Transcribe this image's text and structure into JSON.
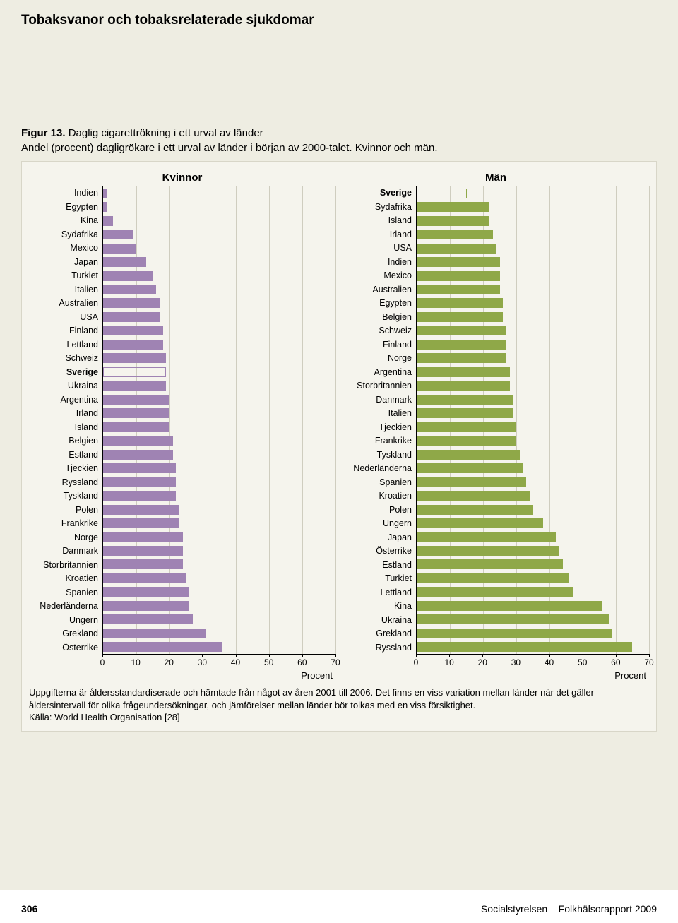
{
  "header": {
    "title": "Tobaksvanor och tobaksrelaterade sjukdomar"
  },
  "figure": {
    "label": "Figur 13.",
    "title": "Daglig cigarettrökning i ett urval av länder",
    "subtitle": "Andel (procent) dagligrökare i ett urval av länder i början av 2000-talet. Kvinnor och män."
  },
  "axis": {
    "xlabel": "Procent",
    "xmax": 70,
    "ticks": [
      0,
      10,
      20,
      30,
      40,
      50,
      60,
      70
    ]
  },
  "colors": {
    "women_bar": "#9f83b3",
    "men_bar": "#8fa848",
    "grid": "#cfcdbf",
    "panel_bg": "#f5f4ed",
    "page_bg": "#eeede2",
    "border": "#d8d6c8"
  },
  "women": {
    "heading": "Kvinnor",
    "highlight": "Sverige",
    "rows": [
      {
        "label": "Indien",
        "value": 1
      },
      {
        "label": "Egypten",
        "value": 1
      },
      {
        "label": "Kina",
        "value": 3
      },
      {
        "label": "Sydafrika",
        "value": 9
      },
      {
        "label": "Mexico",
        "value": 10
      },
      {
        "label": "Japan",
        "value": 13
      },
      {
        "label": "Turkiet",
        "value": 15
      },
      {
        "label": "Italien",
        "value": 16
      },
      {
        "label": "Australien",
        "value": 17
      },
      {
        "label": "USA",
        "value": 17
      },
      {
        "label": "Finland",
        "value": 18
      },
      {
        "label": "Lettland",
        "value": 18
      },
      {
        "label": "Schweiz",
        "value": 19
      },
      {
        "label": "Sverige",
        "value": 19
      },
      {
        "label": "Ukraina",
        "value": 19
      },
      {
        "label": "Argentina",
        "value": 20
      },
      {
        "label": "Irland",
        "value": 20
      },
      {
        "label": "Island",
        "value": 20
      },
      {
        "label": "Belgien",
        "value": 21
      },
      {
        "label": "Estland",
        "value": 21
      },
      {
        "label": "Tjeckien",
        "value": 22
      },
      {
        "label": "Ryssland",
        "value": 22
      },
      {
        "label": "Tyskland",
        "value": 22
      },
      {
        "label": "Polen",
        "value": 23
      },
      {
        "label": "Frankrike",
        "value": 23
      },
      {
        "label": "Norge",
        "value": 24
      },
      {
        "label": "Danmark",
        "value": 24
      },
      {
        "label": "Storbritannien",
        "value": 24
      },
      {
        "label": "Kroatien",
        "value": 25
      },
      {
        "label": "Spanien",
        "value": 26
      },
      {
        "label": "Nederländerna",
        "value": 26
      },
      {
        "label": "Ungern",
        "value": 27
      },
      {
        "label": "Grekland",
        "value": 31
      },
      {
        "label": "Österrike",
        "value": 36
      }
    ]
  },
  "men": {
    "heading": "Män",
    "highlight": "Sverige",
    "rows": [
      {
        "label": "Sverige",
        "value": 15
      },
      {
        "label": "Sydafrika",
        "value": 22
      },
      {
        "label": "Island",
        "value": 22
      },
      {
        "label": "Irland",
        "value": 23
      },
      {
        "label": "USA",
        "value": 24
      },
      {
        "label": "Indien",
        "value": 25
      },
      {
        "label": "Mexico",
        "value": 25
      },
      {
        "label": "Australien",
        "value": 25
      },
      {
        "label": "Egypten",
        "value": 26
      },
      {
        "label": "Belgien",
        "value": 26
      },
      {
        "label": "Schweiz",
        "value": 27
      },
      {
        "label": "Finland",
        "value": 27
      },
      {
        "label": "Norge",
        "value": 27
      },
      {
        "label": "Argentina",
        "value": 28
      },
      {
        "label": "Storbritannien",
        "value": 28
      },
      {
        "label": "Danmark",
        "value": 29
      },
      {
        "label": "Italien",
        "value": 29
      },
      {
        "label": "Tjeckien",
        "value": 30
      },
      {
        "label": "Frankrike",
        "value": 30
      },
      {
        "label": "Tyskland",
        "value": 31
      },
      {
        "label": "Nederländerna",
        "value": 32
      },
      {
        "label": "Spanien",
        "value": 33
      },
      {
        "label": "Kroatien",
        "value": 34
      },
      {
        "label": "Polen",
        "value": 35
      },
      {
        "label": "Ungern",
        "value": 38
      },
      {
        "label": "Japan",
        "value": 42
      },
      {
        "label": "Österrike",
        "value": 43
      },
      {
        "label": "Estland",
        "value": 44
      },
      {
        "label": "Turkiet",
        "value": 46
      },
      {
        "label": "Lettland",
        "value": 47
      },
      {
        "label": "Kina",
        "value": 56
      },
      {
        "label": "Ukraina",
        "value": 58
      },
      {
        "label": "Grekland",
        "value": 59
      },
      {
        "label": "Ryssland",
        "value": 65
      }
    ]
  },
  "note": {
    "line1": "Uppgifterna är åldersstandardiserade och hämtade från något av åren 2001 till 2006. Det finns en viss variation mellan länder när det gäller åldersintervall för olika frågeundersökningar, och jämförelser mellan länder bör tolkas med en viss försiktighet.",
    "source": "Källa: World Health Organisation [28]"
  },
  "footer": {
    "page": "306",
    "doc": "Socialstyrelsen – Folkhälsorapport 2009"
  }
}
